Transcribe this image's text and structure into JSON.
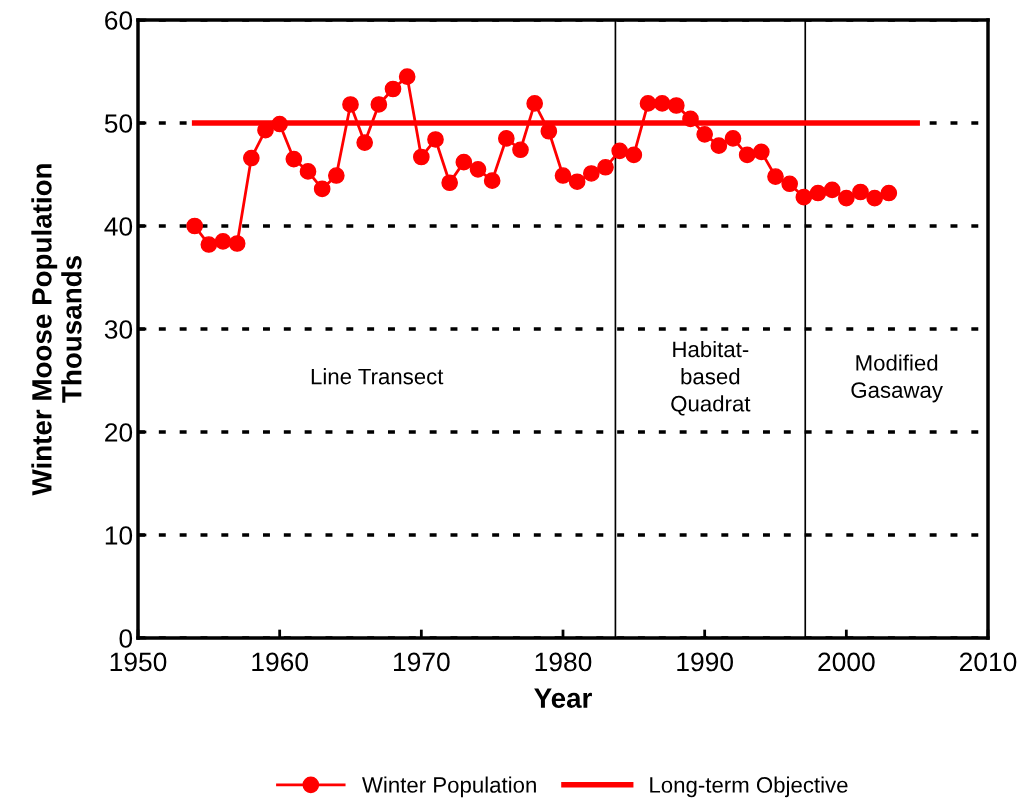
{
  "chart_data": {
    "type": "line",
    "xlabel": "Year",
    "ylabel": "Winter Moose Population\nThousands",
    "xlim": [
      1950,
      2010
    ],
    "xticks": [
      1950,
      1960,
      1970,
      1980,
      1990,
      2000,
      2010
    ],
    "ylim": [
      0,
      60
    ],
    "yticks": [
      0,
      10,
      20,
      30,
      40,
      50,
      60
    ],
    "grid": "y",
    "legend": "bottom",
    "series": [
      {
        "name": "Winter Population",
        "color": "#ff0000",
        "marker": "circle",
        "x": [
          1954,
          1955,
          1956,
          1957,
          1958,
          1959,
          1960,
          1961,
          1962,
          1963,
          1964,
          1965,
          1966,
          1967,
          1968,
          1969,
          1970,
          1971,
          1972,
          1973,
          1974,
          1975,
          1976,
          1977,
          1978,
          1979,
          1980,
          1981,
          1982,
          1983,
          1984,
          1985,
          1986,
          1987,
          1988,
          1989,
          1990,
          1991,
          1992,
          1993,
          1994,
          1995,
          1996,
          1997,
          1998,
          1999,
          2000,
          2001,
          2002,
          2003
        ],
        "values": [
          40.0,
          38.2,
          38.5,
          38.3,
          46.6,
          49.3,
          49.9,
          46.5,
          45.3,
          43.6,
          44.9,
          51.8,
          48.1,
          51.8,
          53.3,
          54.5,
          46.7,
          48.4,
          44.2,
          46.2,
          45.5,
          44.4,
          48.5,
          47.4,
          51.9,
          49.2,
          44.9,
          44.3,
          45.1,
          45.7,
          47.3,
          46.9,
          51.9,
          51.9,
          51.7,
          50.4,
          48.9,
          47.8,
          48.5,
          46.9,
          47.2,
          44.8,
          44.1,
          42.8,
          43.2,
          43.5,
          42.7,
          43.3,
          42.7,
          43.2
        ]
      },
      {
        "name": "Long-term Objective",
        "color": "#ff0000",
        "marker": "none",
        "x": [
          1954,
          2005
        ],
        "values": [
          50,
          50
        ]
      }
    ],
    "ref_lines": [
      {
        "axis": "x",
        "value": 1983.7,
        "color": "#000000"
      },
      {
        "axis": "x",
        "value": 1997.1,
        "color": "#000000"
      }
    ],
    "annotations": [
      "Line Transect",
      "Habitat-\nbased\nQuadrat",
      "Modified\nGasaway"
    ]
  }
}
